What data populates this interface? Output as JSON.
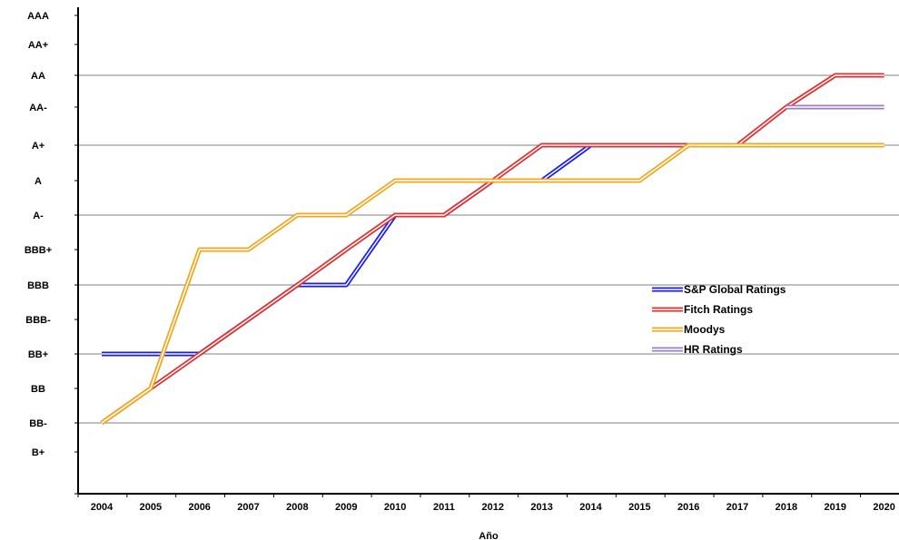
{
  "chart_data": {
    "type": "line",
    "title": "",
    "xlabel": "Año",
    "ylabel": "",
    "x": [
      "2004",
      "2005",
      "2006",
      "2007",
      "2008",
      "2009",
      "2010",
      "2011",
      "2012",
      "2013",
      "2014",
      "2015",
      "2016",
      "2017",
      "2018",
      "2019",
      "2020"
    ],
    "y_scale": [
      "B+",
      "BB-",
      "BB",
      "BB+",
      "BBB-",
      "BBB",
      "BBB+",
      "A-",
      "A",
      "A+",
      "AA-",
      "AA",
      "AA+",
      "AAA"
    ],
    "y_tick_labels": [
      "AAA",
      "AA+",
      "AA",
      "AA-",
      "A+",
      "A",
      "A-",
      "BBB+",
      "BBB",
      "BBB-",
      "BB+",
      "BB",
      "BB-",
      "B+"
    ],
    "grid": true,
    "legend_position": "right",
    "series": [
      {
        "name": "S&P Global Ratings",
        "color": "#1a1aff",
        "values": [
          "BB+",
          "BB+",
          "BB+",
          "BBB-",
          "BBB",
          "BBB",
          "A-",
          "A-",
          "A",
          "A",
          "A+",
          "A+",
          "A+",
          "A+",
          "A+",
          "A+",
          "A+"
        ]
      },
      {
        "name": "Fitch Ratings",
        "color": "#e03030",
        "values": [
          "BB-",
          "BB",
          "BB+",
          "BBB-",
          "BBB",
          "BBB+",
          "A-",
          "A-",
          "A",
          "A+",
          "A+",
          "A+",
          "A+",
          "A+",
          "AA-",
          "AA",
          "AA"
        ]
      },
      {
        "name": "Moodys",
        "color": "#f0a820",
        "values": [
          "BB-",
          "BB",
          "BBB+",
          "BBB+",
          "A-",
          "A-",
          "A",
          "A",
          "A",
          "A",
          "A",
          "A",
          "A+",
          "A+",
          "A+",
          "A+",
          "A+"
        ]
      },
      {
        "name": "HR Ratings",
        "color": "#9a80c0",
        "values": [
          null,
          null,
          null,
          null,
          null,
          null,
          null,
          null,
          null,
          null,
          null,
          null,
          null,
          null,
          "AA-",
          "AA-",
          "AA-"
        ]
      }
    ]
  }
}
